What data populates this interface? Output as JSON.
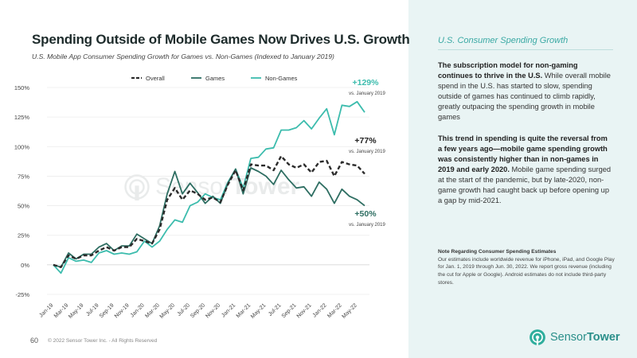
{
  "page": {
    "title": "Spending Outside of Mobile Games Now Drives U.S. Growth",
    "subtitle": "U.S. Mobile App Consumer Spending Growth for Games vs. Non-Games (Indexed to January 2019)",
    "page_number": "60",
    "copyright": "© 2022 Sensor Tower Inc. - All Rights Reserved"
  },
  "brand": {
    "name_part1": "Sensor",
    "name_part2": "Tower",
    "watermark_part1": "Sensor",
    "watermark_part2": "Tower"
  },
  "sidebar": {
    "heading": "U.S. Consumer Spending Growth",
    "p1_bold": "The subscription model for non-gaming continues to thrive in the U.S.",
    "p1_text": " While overall mobile spend in the U.S. has started to slow, spending outside of games has continued to climb rapidly, greatly outpacing the spending growth in mobile games",
    "p2_bold": "This trend in spending is quite the reversal from a few years ago—mobile game spending growth was consistently higher than in non-games in 2019 and early 2020.",
    "p2_text": " Mobile game spending surged at the start of the pandemic, but by late-2020, non-game growth had caught back up before opening up a gap by mid-2021.",
    "note_heading": "Note Regarding Consumer Spending Estimates",
    "note_text": "Our estimates include worldwide revenue for iPhone, iPad, and Google Play for Jan. 1, 2019 through Jun. 30, 2022. We report gross revenue (including the cut for Apple or Google). Android estimates do not include third-party stores."
  },
  "colors": {
    "overall": "#2b2b2b",
    "games": "#2e6e62",
    "non_games": "#3cbcad",
    "accent": "#2fae9d",
    "side_bg": "#e9f4f4"
  },
  "chart_data": {
    "type": "line",
    "title": "U.S. Mobile App Consumer Spending Growth for Games vs. Non-Games (Indexed to January 2019)",
    "xlabel": "",
    "ylabel": "",
    "ylim": [
      -25,
      150
    ],
    "yticks": [
      -25,
      0,
      25,
      50,
      75,
      100,
      125,
      150
    ],
    "ytick_labels": [
      "-25%",
      "0%",
      "25%",
      "50%",
      "75%",
      "100%",
      "125%",
      "150%"
    ],
    "legend_position": "top",
    "x_tick_labels": [
      "Jan-19",
      "Mar-19",
      "May-19",
      "Jul-19",
      "Sep-19",
      "Nov-19",
      "Jan-20",
      "Mar-20",
      "May-20",
      "Jul-20",
      "Sep-20",
      "Nov-20",
      "Jan-21",
      "Mar-21",
      "May-21",
      "Jul-21",
      "Sep-21",
      "Nov-21",
      "Jan-22",
      "Mar-22",
      "May-22"
    ],
    "series": [
      {
        "name": "Overall",
        "style": "dashed",
        "color_key": "overall",
        "values": [
          0,
          -2,
          8,
          5,
          8,
          8,
          12,
          15,
          12,
          15,
          15,
          22,
          20,
          18,
          30,
          55,
          65,
          55,
          63,
          60,
          55,
          57,
          53,
          68,
          80,
          63,
          85,
          84,
          84,
          80,
          92,
          85,
          82,
          85,
          78,
          87,
          88,
          75,
          87,
          85,
          84,
          77
        ]
      },
      {
        "name": "Games",
        "style": "solid",
        "color_key": "games",
        "values": [
          0,
          -2,
          10,
          5,
          9,
          9,
          15,
          18,
          12,
          16,
          16,
          26,
          22,
          18,
          33,
          60,
          79,
          60,
          69,
          61,
          52,
          58,
          52,
          69,
          81,
          60,
          82,
          79,
          75,
          68,
          80,
          72,
          65,
          66,
          58,
          70,
          64,
          52,
          64,
          58,
          55,
          50
        ]
      },
      {
        "name": "Non-Games",
        "style": "solid",
        "color_key": "non_games",
        "values": [
          0,
          -7,
          6,
          3,
          4,
          2,
          10,
          12,
          9,
          10,
          9,
          11,
          20,
          15,
          20,
          30,
          38,
          36,
          50,
          53,
          60,
          57,
          55,
          70,
          81,
          65,
          90,
          91,
          98,
          99,
          114,
          114,
          116,
          122,
          115,
          124,
          132,
          110,
          135,
          134,
          138,
          129
        ]
      }
    ],
    "annotations": [
      {
        "series": "Non-Games",
        "value_label": "+129%",
        "sub_label": "vs. January 2019"
      },
      {
        "series": "Overall",
        "value_label": "+77%",
        "sub_label": "vs. January 2019"
      },
      {
        "series": "Games",
        "value_label": "+50%",
        "sub_label": "vs. January 2019"
      }
    ]
  }
}
